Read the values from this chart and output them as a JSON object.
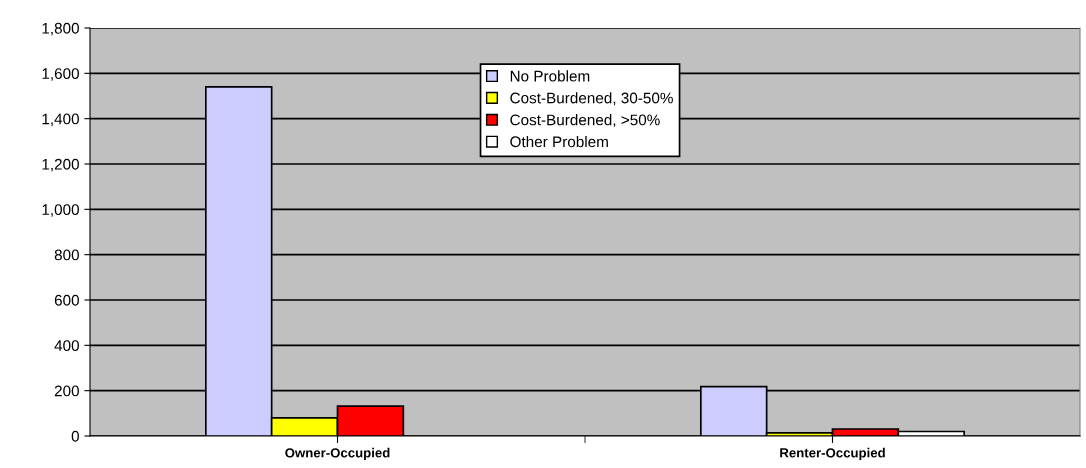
{
  "chart_data": {
    "type": "bar",
    "categories": [
      "Owner-Occupied",
      "Renter-Occupied"
    ],
    "series": [
      {
        "name": "No Problem",
        "color": "#ccccff",
        "values": [
          1540,
          218
        ]
      },
      {
        "name": "Cost-Burdened, 30-50%",
        "color": "#ffff00",
        "values": [
          80,
          14
        ]
      },
      {
        "name": "Cost-Burdened, >50%",
        "color": "#ff0000",
        "values": [
          132,
          31
        ]
      },
      {
        "name": "Other Problem",
        "color": "#ffffff",
        "values": [
          null,
          20
        ]
      }
    ],
    "ylim": [
      0,
      1800
    ],
    "yticks": [
      0,
      200,
      400,
      600,
      800,
      {
        "value": 1000,
        "label": "1,000"
      },
      {
        "value": 1200,
        "label": "1,200"
      },
      {
        "value": 1400,
        "label": "1,400"
      },
      {
        "value": 1600,
        "label": "1,600"
      },
      {
        "value": 1800,
        "label": "1,800"
      }
    ],
    "grid": "y",
    "legend": "top"
  }
}
